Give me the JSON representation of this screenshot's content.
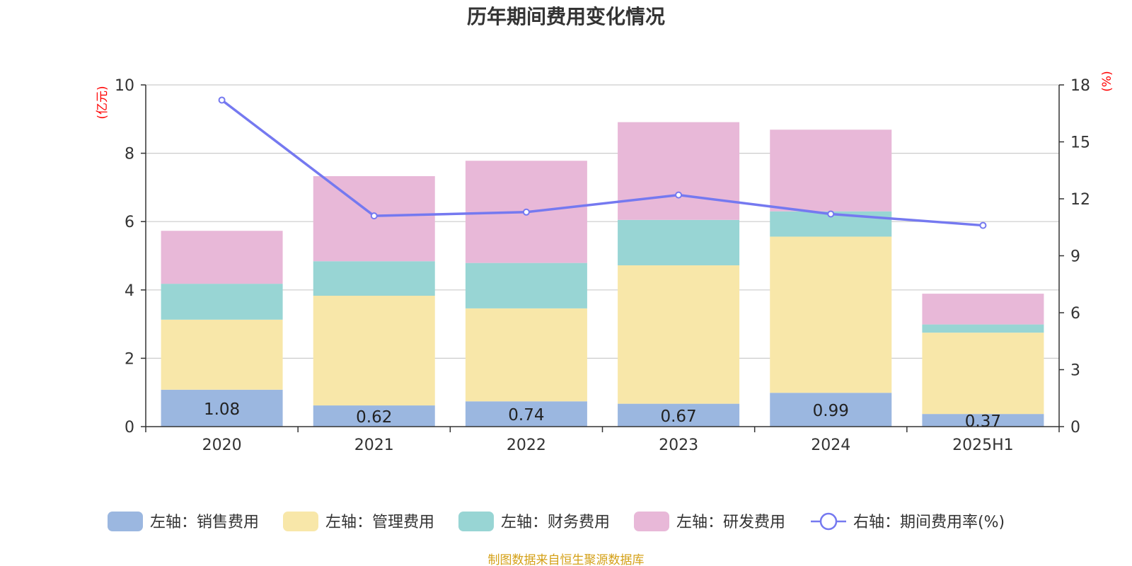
{
  "chart_data": {
    "type": "bar",
    "title": "历年期间费用变化情况",
    "categories": [
      "2020",
      "2021",
      "2022",
      "2023",
      "2024",
      "2025H1"
    ],
    "left_axis": {
      "unit_label": "(亿元)",
      "ylim": [
        0,
        10
      ],
      "ticks": [
        "0",
        "2",
        "4",
        "6",
        "8",
        "10"
      ]
    },
    "right_axis": {
      "unit_label": "(%)",
      "ylim": [
        0,
        18
      ],
      "ticks": [
        "0",
        "3",
        "6",
        "9",
        "12",
        "15",
        "18"
      ]
    },
    "series": [
      {
        "name": "左轴：销售费用",
        "type": "bar",
        "axis": "left",
        "color": "#9bb7e0",
        "values": [
          1.08,
          0.62,
          0.74,
          0.67,
          0.99,
          0.37
        ],
        "labels": [
          "1.08",
          "0.62",
          "0.74",
          "0.67",
          "0.99",
          "0.37"
        ]
      },
      {
        "name": "左轴：管理费用",
        "type": "bar",
        "axis": "left",
        "color": "#f8e7a9",
        "values": [
          2.05,
          3.21,
          2.72,
          4.05,
          4.57,
          2.38
        ]
      },
      {
        "name": "左轴：财务费用",
        "type": "bar",
        "axis": "left",
        "color": "#98d5d4",
        "values": [
          1.05,
          1.01,
          1.33,
          1.33,
          0.74,
          0.24
        ]
      },
      {
        "name": "左轴：研发费用",
        "type": "bar",
        "axis": "left",
        "color": "#e8b8d8",
        "values": [
          1.55,
          2.49,
          2.99,
          2.86,
          2.39,
          0.9
        ]
      },
      {
        "name": "右轴：期间费用率(%)",
        "type": "line",
        "axis": "right",
        "color": "#7579f0",
        "values": [
          17.2,
          11.1,
          11.3,
          12.2,
          11.2,
          10.6
        ]
      }
    ],
    "grid": true,
    "legend_position": "bottom"
  },
  "footer": {
    "source": "制图数据来自恒生聚源数据库"
  }
}
